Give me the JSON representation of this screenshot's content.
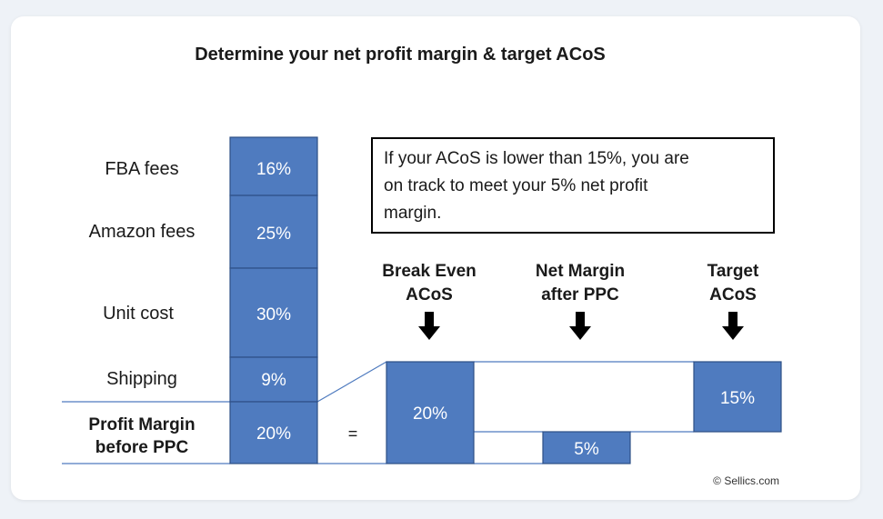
{
  "title": "Determine your net profit margin & target ACoS",
  "note": [
    "If your ACoS is lower than 15%, you are",
    "on track to meet your 5% net profit",
    "margin."
  ],
  "cost_items": [
    {
      "label": "FBA fees",
      "value": "16%"
    },
    {
      "label": "Amazon fees",
      "value": "25%"
    },
    {
      "label": "Unit cost",
      "value": "30%"
    },
    {
      "label": "Shipping",
      "value": "9%"
    },
    {
      "label": [
        "Profit Margin",
        "before PPC"
      ],
      "value": "20%",
      "bold": true
    }
  ],
  "equals": "=",
  "columns": [
    {
      "label": [
        "Break Even",
        "ACoS"
      ],
      "value": "20%"
    },
    {
      "label": [
        "Net Margin",
        "after PPC"
      ],
      "value": "5%"
    },
    {
      "label": [
        "Target",
        "ACoS"
      ],
      "value": "15%"
    }
  ],
  "copyright": "© Sellics.com",
  "colors": {
    "box_fill": "#4f7bbf",
    "box_stroke": "#2d4f86",
    "line": "#4f7bbf",
    "text": "#1a1a1a",
    "arrow": "#000000",
    "card": "#ffffff",
    "background": "#eef2f7"
  }
}
